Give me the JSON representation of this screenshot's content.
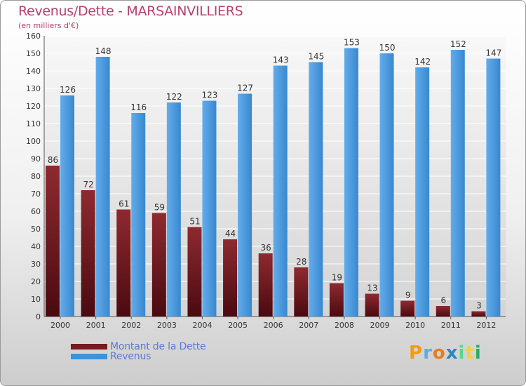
{
  "header": {
    "title": "Revenus/Dette - MARSAINVILLIERS",
    "subtitle": "(en milliers d'€)"
  },
  "legend": [
    {
      "label": "Montant de la Dette",
      "color": "#7a1a1f"
    },
    {
      "label": "Revenus",
      "color": "#3d92d8"
    }
  ],
  "logo_text": "Proxiti",
  "chart_data": {
    "type": "bar",
    "title": "Revenus/Dette - MARSAINVILLIERS",
    "subtitle": "(en milliers d'€)",
    "categories": [
      "2000",
      "2001",
      "2002",
      "2003",
      "2004",
      "2005",
      "2006",
      "2007",
      "2008",
      "2009",
      "2010",
      "2011",
      "2012"
    ],
    "series": [
      {
        "name": "Montant de la Dette",
        "color": "#7a1a1f",
        "values": [
          86,
          72,
          61,
          59,
          51,
          44,
          36,
          28,
          19,
          13,
          9,
          6,
          3
        ]
      },
      {
        "name": "Revenus",
        "color": "#3d92d8",
        "values": [
          126,
          148,
          116,
          122,
          123,
          127,
          143,
          145,
          153,
          150,
          142,
          152,
          147
        ]
      }
    ],
    "yticks": [
      0,
      10,
      20,
      30,
      40,
      50,
      60,
      70,
      80,
      90,
      100,
      110,
      120,
      130,
      140,
      150,
      160
    ],
    "ylim": [
      0,
      160
    ],
    "grid": true,
    "legend_position": "bottom-left"
  }
}
